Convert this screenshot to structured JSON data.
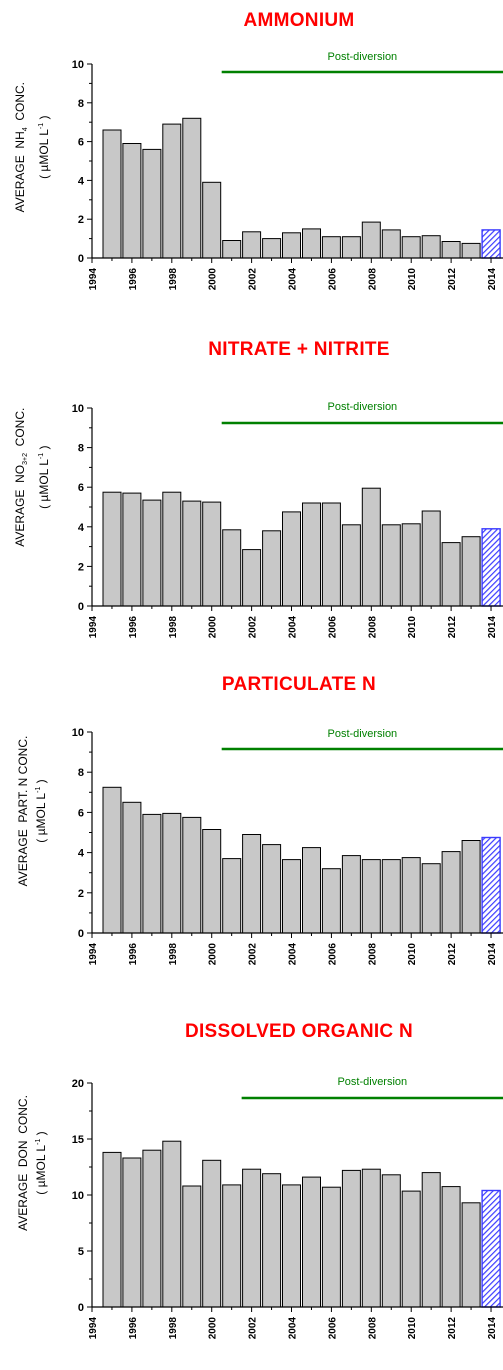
{
  "colors": {
    "bar_fill": "#c8c8c8",
    "bar_edge": "#000000",
    "highlight_fill": "#3b3bff",
    "post_line": "#008000",
    "title_color": "#ff0000"
  },
  "post_label": "Post-diversion",
  "ylabel_prefix": "AVERAGE",
  "ylabel_unit_line": "( µMOL L",
  "ylabel_unit_sup": "-1",
  "ylabel_unit_close": " )",
  "chart_data": [
    {
      "type": "bar",
      "title": "AMMONIUM",
      "ylabel_main": "NH",
      "ylabel_sub": "4",
      "ylabel_rest": "CONC.",
      "ylim": [
        0,
        10
      ],
      "yticks": [
        0,
        2,
        4,
        6,
        8,
        10
      ],
      "x_ticks": [
        1994,
        1996,
        1998,
        2000,
        2002,
        2004,
        2006,
        2008,
        2010,
        2012,
        2014
      ],
      "years": [
        1995,
        1996,
        1997,
        1998,
        1999,
        2000,
        2001,
        2002,
        2003,
        2004,
        2005,
        2006,
        2007,
        2008,
        2009,
        2010,
        2011,
        2012,
        2013,
        2014
      ],
      "values": [
        6.6,
        5.9,
        5.6,
        6.9,
        7.2,
        3.9,
        0.9,
        1.35,
        1.0,
        1.3,
        1.5,
        1.1,
        1.1,
        1.85,
        1.45,
        1.1,
        1.15,
        0.85,
        0.75,
        1.45
      ],
      "highlight_year": 2014,
      "post_diversion_from": 2000.5
    },
    {
      "type": "bar",
      "title": "NITRATE + NITRITE",
      "ylabel_main": "NO",
      "ylabel_sub": "3+2",
      "ylabel_rest": "CONC.",
      "ylim": [
        0,
        10
      ],
      "yticks": [
        0,
        2,
        4,
        6,
        8,
        10
      ],
      "x_ticks": [
        1994,
        1996,
        1998,
        2000,
        2002,
        2004,
        2006,
        2008,
        2010,
        2012,
        2014
      ],
      "years": [
        1995,
        1996,
        1997,
        1998,
        1999,
        2000,
        2001,
        2002,
        2003,
        2004,
        2005,
        2006,
        2007,
        2008,
        2009,
        2010,
        2011,
        2012,
        2013,
        2014
      ],
      "values": [
        5.75,
        5.7,
        5.35,
        5.75,
        5.3,
        5.25,
        3.85,
        2.85,
        3.8,
        4.75,
        5.2,
        5.2,
        4.1,
        5.95,
        4.1,
        4.15,
        4.8,
        3.2,
        3.5,
        3.9
      ],
      "highlight_year": 2014,
      "post_diversion_from": 2000.5
    },
    {
      "type": "bar",
      "title": "PARTICULATE  N",
      "ylabel_main": "PART. N",
      "ylabel_sub": "",
      "ylabel_rest": "CONC.",
      "ylim": [
        0,
        10
      ],
      "yticks": [
        0,
        2,
        4,
        6,
        8,
        10
      ],
      "x_ticks": [
        1994,
        1996,
        1998,
        2000,
        2002,
        2004,
        2006,
        2008,
        2010,
        2012,
        2014
      ],
      "years": [
        1995,
        1996,
        1997,
        1998,
        1999,
        2000,
        2001,
        2002,
        2003,
        2004,
        2005,
        2006,
        2007,
        2008,
        2009,
        2010,
        2011,
        2012,
        2013,
        2014
      ],
      "values": [
        7.25,
        6.5,
        5.9,
        5.95,
        5.75,
        5.15,
        3.7,
        4.9,
        4.4,
        3.65,
        4.25,
        3.2,
        3.85,
        3.65,
        3.65,
        3.75,
        3.45,
        4.05,
        4.6,
        4.75
      ],
      "highlight_year": 2014,
      "post_diversion_from": 2000.5
    },
    {
      "type": "bar",
      "title": "DISSOLVED  ORGANIC  N",
      "ylabel_main": "DON",
      "ylabel_sub": "",
      "ylabel_rest": "CONC.",
      "ylim": [
        0,
        20
      ],
      "yticks": [
        0,
        5,
        10,
        15,
        20
      ],
      "x_ticks": [
        1994,
        1996,
        1998,
        2000,
        2002,
        2004,
        2006,
        2008,
        2010,
        2012,
        2014
      ],
      "years": [
        1995,
        1996,
        1997,
        1998,
        1999,
        2000,
        2001,
        2002,
        2003,
        2004,
        2005,
        2006,
        2007,
        2008,
        2009,
        2010,
        2011,
        2012,
        2013,
        2014
      ],
      "values": [
        13.8,
        13.3,
        14.0,
        14.8,
        10.8,
        13.1,
        10.9,
        12.3,
        11.9,
        10.9,
        11.6,
        10.7,
        12.2,
        12.3,
        11.8,
        10.35,
        12.0,
        10.75,
        9.3,
        10.4
      ],
      "highlight_year": 2014,
      "post_diversion_from": 2001.5
    }
  ]
}
